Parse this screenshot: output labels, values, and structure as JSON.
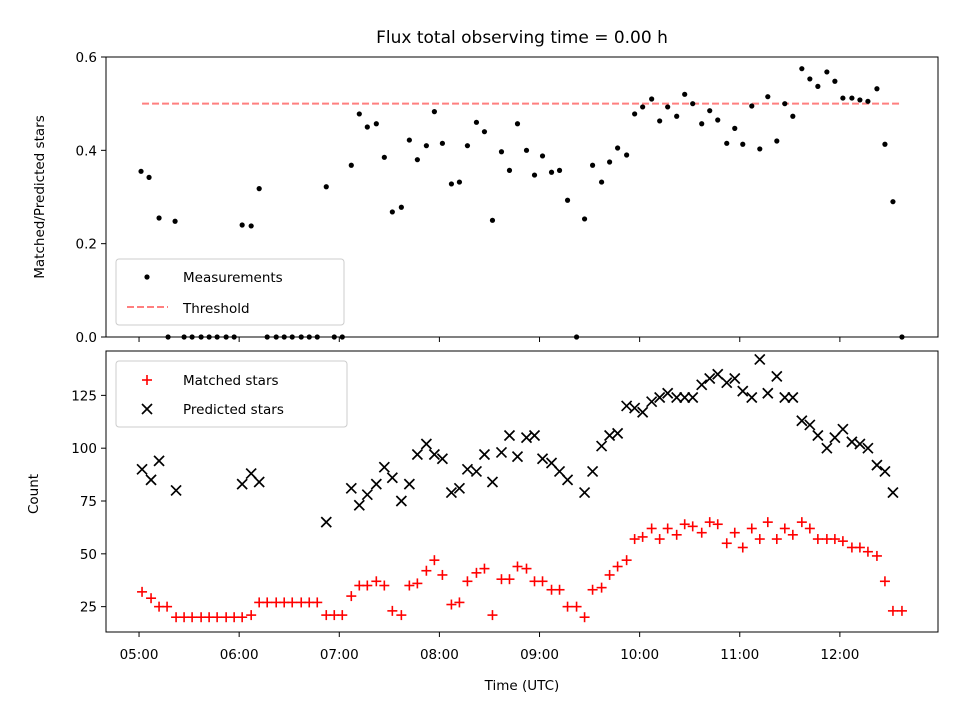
{
  "chart_data": [
    {
      "type": "scatter",
      "title": "Flux total observing time = 0.00 h",
      "ylabel": "Matched/Predicted stars",
      "ylim": [
        0,
        0.6
      ],
      "yticks": [
        "0.0",
        "0.2",
        "0.4",
        "0.6"
      ],
      "threshold": 0.5,
      "legend": {
        "placement": "lower left",
        "entries": [
          "Measurements",
          "Threshold"
        ]
      },
      "colors": {
        "measurements": "#000000",
        "threshold": "#ff7f7f"
      },
      "series": [
        {
          "name": "Measurements",
          "points": [
            [
              5.02,
              0.355
            ],
            [
              5.1,
              0.342
            ],
            [
              5.2,
              0.255
            ],
            [
              5.29,
              0
            ],
            [
              5.36,
              0.248
            ],
            [
              5.45,
              0
            ],
            [
              5.53,
              0
            ],
            [
              5.62,
              0
            ],
            [
              5.7,
              0
            ],
            [
              5.78,
              0
            ],
            [
              5.87,
              0
            ],
            [
              5.95,
              0
            ],
            [
              6.03,
              0.24
            ],
            [
              6.12,
              0.238
            ],
            [
              6.2,
              0.318
            ],
            [
              6.28,
              0
            ],
            [
              6.37,
              0
            ],
            [
              6.45,
              0
            ],
            [
              6.53,
              0
            ],
            [
              6.62,
              0
            ],
            [
              6.7,
              0
            ],
            [
              6.78,
              0
            ],
            [
              6.87,
              0.322
            ],
            [
              6.95,
              0
            ],
            [
              7.03,
              0
            ],
            [
              7.12,
              0.368
            ],
            [
              7.2,
              0.478
            ],
            [
              7.28,
              0.45
            ],
            [
              7.37,
              0.457
            ],
            [
              7.45,
              0.385
            ],
            [
              7.53,
              0.268
            ],
            [
              7.62,
              0.278
            ],
            [
              7.7,
              0.422
            ],
            [
              7.78,
              0.38
            ],
            [
              7.87,
              0.41
            ],
            [
              7.95,
              0.483
            ],
            [
              8.03,
              0.415
            ],
            [
              8.12,
              0.328
            ],
            [
              8.2,
              0.332
            ],
            [
              8.28,
              0.41
            ],
            [
              8.37,
              0.46
            ],
            [
              8.45,
              0.44
            ],
            [
              8.53,
              0.25
            ],
            [
              8.62,
              0.397
            ],
            [
              8.7,
              0.357
            ],
            [
              8.78,
              0.457
            ],
            [
              8.87,
              0.4
            ],
            [
              8.95,
              0.347
            ],
            [
              9.03,
              0.388
            ],
            [
              9.12,
              0.353
            ],
            [
              9.2,
              0.357
            ],
            [
              9.28,
              0.293
            ],
            [
              9.37,
              0
            ],
            [
              9.45,
              0.253
            ],
            [
              9.53,
              0.368
            ],
            [
              9.62,
              0.332
            ],
            [
              9.7,
              0.375
            ],
            [
              9.78,
              0.405
            ],
            [
              9.87,
              0.39
            ],
            [
              9.95,
              0.478
            ],
            [
              10.03,
              0.493
            ],
            [
              10.12,
              0.51
            ],
            [
              10.2,
              0.463
            ],
            [
              10.28,
              0.493
            ],
            [
              10.37,
              0.473
            ],
            [
              10.45,
              0.52
            ],
            [
              10.53,
              0.5
            ],
            [
              10.62,
              0.457
            ],
            [
              10.7,
              0.485
            ],
            [
              10.78,
              0.465
            ],
            [
              10.87,
              0.415
            ],
            [
              10.95,
              0.447
            ],
            [
              11.03,
              0.413
            ],
            [
              11.12,
              0.495
            ],
            [
              11.2,
              0.403
            ],
            [
              11.28,
              0.515
            ],
            [
              11.37,
              0.42
            ],
            [
              11.45,
              0.5
            ],
            [
              11.53,
              0.473
            ],
            [
              11.62,
              0.575
            ],
            [
              11.7,
              0.553
            ],
            [
              11.78,
              0.537
            ],
            [
              11.87,
              0.568
            ],
            [
              11.95,
              0.548
            ],
            [
              12.03,
              0.512
            ],
            [
              12.12,
              0.512
            ],
            [
              12.2,
              0.508
            ],
            [
              12.28,
              0.505
            ],
            [
              12.37,
              0.532
            ],
            [
              12.45,
              0.413
            ],
            [
              12.53,
              0.29
            ],
            [
              12.62,
              0
            ]
          ]
        },
        {
          "name": "Threshold",
          "x": [
            5.03,
            12.62
          ],
          "y": [
            0.5,
            0.5
          ]
        }
      ]
    },
    {
      "type": "scatter",
      "xlabel": "Time (UTC)",
      "ylabel": "Count",
      "xlim": [
        4.67,
        12.98
      ],
      "ylim": [
        13,
        146
      ],
      "xticks": [
        "05:00",
        "06:00",
        "07:00",
        "08:00",
        "09:00",
        "10:00",
        "11:00",
        "12:00"
      ],
      "yticks": [
        "25",
        "50",
        "75",
        "100",
        "125"
      ],
      "legend": {
        "placement": "upper left",
        "entries": [
          "Matched stars",
          "Predicted stars"
        ]
      },
      "colors": {
        "matched": "#ff0000",
        "predicted": "#000000"
      },
      "series": [
        {
          "name": "Matched stars",
          "points": [
            [
              5.03,
              32
            ],
            [
              5.12,
              29
            ],
            [
              5.2,
              25
            ],
            [
              5.28,
              25
            ],
            [
              5.37,
              20
            ],
            [
              5.45,
              20
            ],
            [
              5.53,
              20
            ],
            [
              5.62,
              20
            ],
            [
              5.7,
              20
            ],
            [
              5.78,
              20
            ],
            [
              5.87,
              20
            ],
            [
              5.95,
              20
            ],
            [
              6.03,
              20
            ],
            [
              6.12,
              21
            ],
            [
              6.2,
              27
            ],
            [
              6.28,
              27
            ],
            [
              6.37,
              27
            ],
            [
              6.45,
              27
            ],
            [
              6.53,
              27
            ],
            [
              6.62,
              27
            ],
            [
              6.7,
              27
            ],
            [
              6.78,
              27
            ],
            [
              6.87,
              21
            ],
            [
              6.95,
              21
            ],
            [
              7.03,
              21
            ],
            [
              7.12,
              30
            ],
            [
              7.2,
              35
            ],
            [
              7.28,
              35
            ],
            [
              7.37,
              37
            ],
            [
              7.45,
              35
            ],
            [
              7.53,
              23
            ],
            [
              7.62,
              21
            ],
            [
              7.7,
              35
            ],
            [
              7.78,
              36
            ],
            [
              7.87,
              42
            ],
            [
              7.95,
              47
            ],
            [
              8.03,
              40
            ],
            [
              8.12,
              26
            ],
            [
              8.2,
              27
            ],
            [
              8.28,
              37
            ],
            [
              8.37,
              41
            ],
            [
              8.45,
              43
            ],
            [
              8.53,
              21
            ],
            [
              8.62,
              38
            ],
            [
              8.7,
              38
            ],
            [
              8.78,
              44
            ],
            [
              8.87,
              43
            ],
            [
              8.95,
              37
            ],
            [
              9.03,
              37
            ],
            [
              9.12,
              33
            ],
            [
              9.2,
              33
            ],
            [
              9.28,
              25
            ],
            [
              9.37,
              25
            ],
            [
              9.45,
              20
            ],
            [
              9.53,
              33
            ],
            [
              9.62,
              34
            ],
            [
              9.7,
              40
            ],
            [
              9.78,
              44
            ],
            [
              9.87,
              47
            ],
            [
              9.95,
              57
            ],
            [
              10.03,
              58
            ],
            [
              10.12,
              62
            ],
            [
              10.2,
              57
            ],
            [
              10.28,
              62
            ],
            [
              10.37,
              59
            ],
            [
              10.45,
              64
            ],
            [
              10.53,
              63
            ],
            [
              10.62,
              60
            ],
            [
              10.7,
              65
            ],
            [
              10.78,
              64
            ],
            [
              10.87,
              55
            ],
            [
              10.95,
              60
            ],
            [
              11.03,
              53
            ],
            [
              11.12,
              62
            ],
            [
              11.2,
              57
            ],
            [
              11.28,
              65
            ],
            [
              11.37,
              57
            ],
            [
              11.45,
              62
            ],
            [
              11.53,
              59
            ],
            [
              11.62,
              65
            ],
            [
              11.7,
              62
            ],
            [
              11.78,
              57
            ],
            [
              11.87,
              57
            ],
            [
              11.95,
              57
            ],
            [
              12.03,
              56
            ],
            [
              12.12,
              53
            ],
            [
              12.2,
              53
            ],
            [
              12.28,
              51
            ],
            [
              12.37,
              49
            ],
            [
              12.45,
              37
            ],
            [
              12.53,
              23
            ],
            [
              12.62,
              23
            ]
          ]
        },
        {
          "name": "Predicted stars",
          "points": [
            [
              5.03,
              90
            ],
            [
              5.12,
              85
            ],
            [
              5.2,
              94
            ],
            [
              5.37,
              80
            ],
            [
              6.03,
              83
            ],
            [
              6.12,
              88
            ],
            [
              6.2,
              84
            ],
            [
              6.87,
              65
            ],
            [
              7.12,
              81
            ],
            [
              7.2,
              73
            ],
            [
              7.28,
              78
            ],
            [
              7.37,
              83
            ],
            [
              7.45,
              91
            ],
            [
              7.53,
              86
            ],
            [
              7.62,
              75
            ],
            [
              7.7,
              83
            ],
            [
              7.78,
              97
            ],
            [
              7.87,
              102
            ],
            [
              7.95,
              97
            ],
            [
              8.03,
              95
            ],
            [
              8.12,
              79
            ],
            [
              8.2,
              81
            ],
            [
              8.28,
              90
            ],
            [
              8.37,
              89
            ],
            [
              8.45,
              97
            ],
            [
              8.53,
              84
            ],
            [
              8.62,
              98
            ],
            [
              8.7,
              106
            ],
            [
              8.78,
              96
            ],
            [
              8.87,
              105
            ],
            [
              8.95,
              106
            ],
            [
              9.03,
              95
            ],
            [
              9.12,
              93
            ],
            [
              9.2,
              89
            ],
            [
              9.28,
              85
            ],
            [
              9.45,
              79
            ],
            [
              9.53,
              89
            ],
            [
              9.62,
              101
            ],
            [
              9.7,
              106
            ],
            [
              9.78,
              107
            ],
            [
              9.87,
              120
            ],
            [
              9.95,
              119
            ],
            [
              10.03,
              117
            ],
            [
              10.12,
              122
            ],
            [
              10.2,
              124
            ],
            [
              10.28,
              126
            ],
            [
              10.37,
              124
            ],
            [
              10.45,
              124
            ],
            [
              10.53,
              124
            ],
            [
              10.62,
              130
            ],
            [
              10.7,
              133
            ],
            [
              10.78,
              135
            ],
            [
              10.87,
              131
            ],
            [
              10.95,
              133
            ],
            [
              11.03,
              127
            ],
            [
              11.12,
              124
            ],
            [
              11.2,
              142
            ],
            [
              11.28,
              126
            ],
            [
              11.37,
              134
            ],
            [
              11.45,
              124
            ],
            [
              11.53,
              124
            ],
            [
              11.62,
              113
            ],
            [
              11.7,
              111
            ],
            [
              11.78,
              106
            ],
            [
              11.87,
              100
            ],
            [
              11.95,
              105
            ],
            [
              12.03,
              109
            ],
            [
              12.12,
              103
            ],
            [
              12.2,
              102
            ],
            [
              12.28,
              100
            ],
            [
              12.37,
              92
            ],
            [
              12.45,
              89
            ],
            [
              12.53,
              79
            ]
          ]
        }
      ]
    }
  ]
}
